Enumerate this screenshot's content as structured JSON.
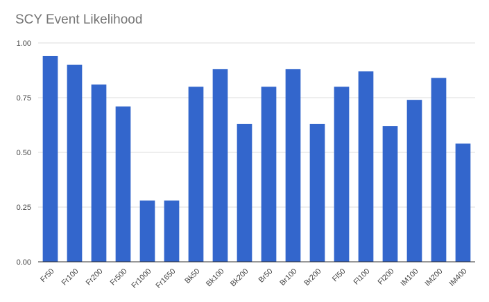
{
  "chart_data": {
    "type": "bar",
    "title": "SCY Event Likelihood",
    "xlabel": "",
    "ylabel": "",
    "categories": [
      "Fr50",
      "Fr100",
      "Fr200",
      "Fr500",
      "Fr1000",
      "Fr1650",
      "Bk50",
      "Bk100",
      "Bk200",
      "Br50",
      "Br100",
      "Br200",
      "Fl50",
      "Fl100",
      "Fl200",
      "IM100",
      "IM200",
      "IM400"
    ],
    "values": [
      0.94,
      0.9,
      0.81,
      0.71,
      0.28,
      0.28,
      0.8,
      0.88,
      0.63,
      0.8,
      0.88,
      0.63,
      0.8,
      0.87,
      0.62,
      0.74,
      0.84,
      0.54
    ],
    "ylim": [
      0,
      1
    ],
    "yticks": [
      "0.00",
      "0.25",
      "0.50",
      "0.75",
      "1.00"
    ],
    "grid": true,
    "bar_color": "#3366cc",
    "grid_color": "#dddddd",
    "axis_color": "#333333"
  }
}
